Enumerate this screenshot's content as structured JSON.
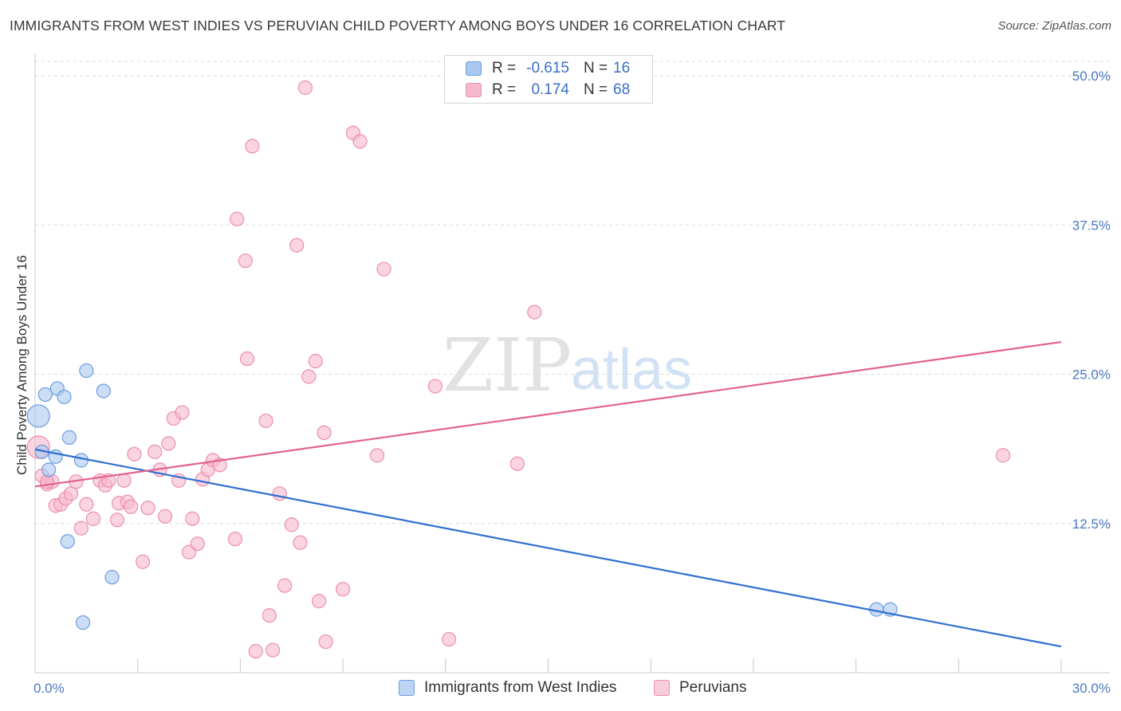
{
  "title": "IMMIGRANTS FROM WEST INDIES VS PERUVIAN CHILD POVERTY AMONG BOYS UNDER 16 CORRELATION CHART",
  "source": "Source: ZipAtlas.com",
  "watermark": {
    "zip": "ZIP",
    "atlas": "atlas"
  },
  "colors": {
    "blue_fill": "#a9c8f0",
    "blue_stroke": "#6d9de0",
    "blue_line": "#2f6fd0",
    "pink_fill": "#f6b8cc",
    "pink_stroke": "#ec8fae",
    "pink_line": "#e2628f",
    "grid": "#d9d9d9",
    "axis_text": "#4a78c4"
  },
  "legend_top": [
    {
      "r_label": "R =",
      "r_value": "-0.615",
      "n_label": "N =",
      "n_value": "16"
    },
    {
      "r_label": "R =",
      "r_value": "0.174",
      "n_label": "N =",
      "n_value": "68"
    }
  ],
  "legend_bottom": [
    "Immigrants from West Indies",
    "Peruvians"
  ],
  "chart_data": {
    "type": "scatter",
    "title": "IMMIGRANTS FROM WEST INDIES VS PERUVIAN CHILD POVERTY AMONG BOYS UNDER 16 CORRELATION CHART",
    "xlabel": "",
    "ylabel": "Child Poverty Among Boys Under 16",
    "xlim": [
      0,
      30
    ],
    "ylim": [
      0,
      50
    ],
    "x_tick_labels": [
      "0.0%",
      "30.0%"
    ],
    "y_tick_labels": [
      "12.5%",
      "25.0%",
      "37.5%",
      "50.0%"
    ],
    "y_ticks": [
      12.5,
      25.0,
      37.5,
      50.0
    ],
    "grid": true,
    "legend_position": "top-center",
    "series": [
      {
        "name": "Immigrants from West Indies",
        "color": "#a9c8f0",
        "points": [
          [
            0.1,
            21.5
          ],
          [
            0.2,
            18.5
          ],
          [
            0.3,
            23.3
          ],
          [
            0.4,
            17.0
          ],
          [
            0.6,
            18.1
          ],
          [
            0.65,
            23.8
          ],
          [
            0.85,
            23.1
          ],
          [
            1.0,
            19.7
          ],
          [
            0.95,
            11.0
          ],
          [
            1.35,
            17.8
          ],
          [
            1.5,
            25.3
          ],
          [
            1.4,
            4.2
          ],
          [
            2.0,
            23.6
          ],
          [
            2.25,
            8.0
          ],
          [
            24.6,
            5.3
          ],
          [
            25.0,
            5.3
          ]
        ],
        "trend": [
          [
            0.0,
            18.7
          ],
          [
            30.0,
            2.2
          ]
        ]
      },
      {
        "name": "Peruvians",
        "color": "#f6b8cc",
        "points": [
          [
            0.1,
            18.9
          ],
          [
            0.2,
            16.5
          ],
          [
            0.35,
            15.8
          ],
          [
            0.5,
            16.0
          ],
          [
            0.6,
            14.0
          ],
          [
            0.75,
            14.1
          ],
          [
            0.9,
            14.6
          ],
          [
            1.05,
            15.0
          ],
          [
            1.2,
            16.0
          ],
          [
            1.35,
            12.1
          ],
          [
            1.5,
            14.1
          ],
          [
            1.7,
            12.9
          ],
          [
            1.9,
            16.1
          ],
          [
            2.05,
            15.7
          ],
          [
            2.15,
            16.1
          ],
          [
            2.4,
            12.8
          ],
          [
            2.45,
            14.2
          ],
          [
            2.6,
            16.1
          ],
          [
            2.7,
            14.3
          ],
          [
            2.8,
            13.9
          ],
          [
            2.9,
            18.3
          ],
          [
            3.15,
            9.3
          ],
          [
            3.3,
            13.8
          ],
          [
            3.5,
            18.5
          ],
          [
            3.65,
            17.0
          ],
          [
            3.8,
            13.1
          ],
          [
            3.9,
            19.2
          ],
          [
            4.05,
            21.3
          ],
          [
            4.2,
            16.1
          ],
          [
            4.3,
            21.8
          ],
          [
            4.5,
            10.1
          ],
          [
            4.6,
            12.9
          ],
          [
            4.75,
            10.8
          ],
          [
            4.9,
            16.2
          ],
          [
            5.05,
            17.0
          ],
          [
            5.2,
            17.8
          ],
          [
            5.4,
            17.4
          ],
          [
            5.85,
            11.2
          ],
          [
            5.9,
            38.0
          ],
          [
            6.15,
            34.5
          ],
          [
            6.2,
            26.3
          ],
          [
            6.35,
            44.1
          ],
          [
            6.45,
            1.8
          ],
          [
            6.75,
            21.1
          ],
          [
            6.85,
            4.8
          ],
          [
            6.95,
            1.9
          ],
          [
            7.15,
            15.0
          ],
          [
            7.3,
            7.3
          ],
          [
            7.5,
            12.4
          ],
          [
            7.65,
            35.8
          ],
          [
            7.75,
            10.9
          ],
          [
            7.9,
            49.0
          ],
          [
            8.0,
            24.8
          ],
          [
            8.2,
            26.1
          ],
          [
            8.3,
            6.0
          ],
          [
            8.45,
            20.1
          ],
          [
            8.5,
            2.6
          ],
          [
            9.0,
            7.0
          ],
          [
            9.3,
            45.2
          ],
          [
            9.5,
            44.5
          ],
          [
            10.0,
            18.2
          ],
          [
            10.2,
            33.8
          ],
          [
            11.7,
            24.0
          ],
          [
            12.1,
            2.8
          ],
          [
            14.1,
            17.5
          ],
          [
            14.6,
            30.2
          ],
          [
            28.3,
            18.2
          ],
          [
            0.35,
            16.0
          ]
        ],
        "trend": [
          [
            0.0,
            15.6
          ],
          [
            30.0,
            27.7
          ]
        ]
      }
    ]
  }
}
